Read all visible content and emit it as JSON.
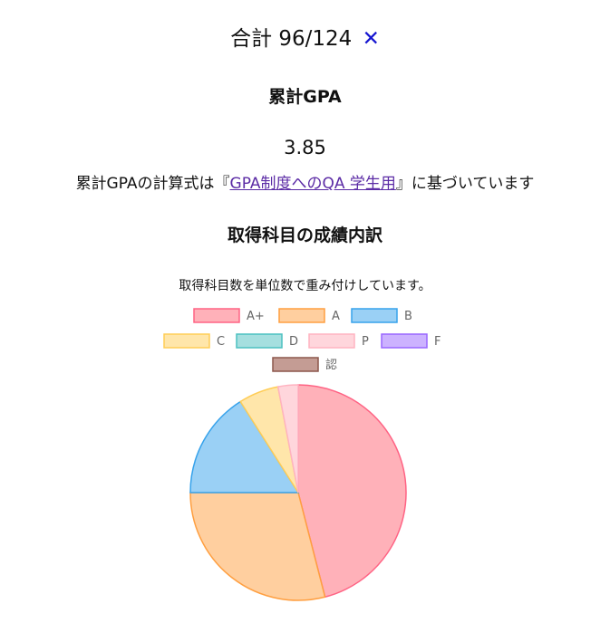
{
  "summary": {
    "total_label": "合計",
    "total_value": "96/124",
    "status_mark": "✕",
    "gpa_title": "累計GPA",
    "gpa_value": "3.85",
    "note_prefix": "累計GPAの計算式は『",
    "note_link": "GPA制度へのQA 学生用",
    "note_suffix": "』に基づいています",
    "breakdown_title": "取得科目の成績内訳"
  },
  "chart_data": {
    "type": "pie",
    "title": "取得科目数を単位数で重み付けしています。",
    "legend_position": "top",
    "categories": [
      "A+",
      "A",
      "B",
      "C",
      "D",
      "P",
      "F",
      "認"
    ],
    "values": [
      46,
      29,
      16,
      6,
      0,
      3,
      0,
      0
    ],
    "fill_colors": [
      "#ffb1b9",
      "#ffcf9f",
      "#9ad0f5",
      "#ffe6aa",
      "#a5dfdf",
      "#ffd6dc",
      "#ccb2ff",
      "#c49c94"
    ],
    "border_colors": [
      "#ff6384",
      "#ff9f40",
      "#36a2eb",
      "#ffcd56",
      "#4bc0c0",
      "#ffb3c1",
      "#9966ff",
      "#8c564b"
    ]
  }
}
